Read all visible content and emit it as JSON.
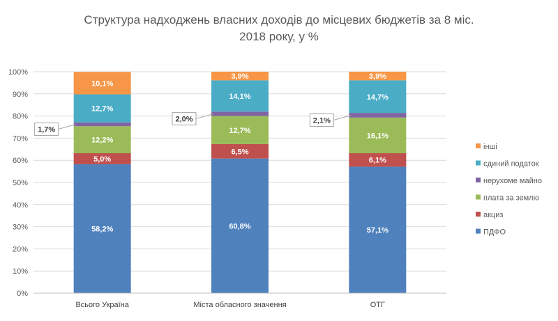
{
  "chart_data": {
    "type": "bar",
    "stacked": true,
    "percent_scale": true,
    "title_line1": "Структура  надходжень власних доходів до місцевих бюджетів за 8 міс.",
    "title_line2": "2018 року, у %",
    "categories": [
      "Всього Україна",
      "Міста обласного значення",
      "ОТГ"
    ],
    "ylim": [
      0,
      100
    ],
    "yticks": [
      0,
      10,
      20,
      30,
      40,
      50,
      60,
      70,
      80,
      90,
      100
    ],
    "ytick_labels": [
      "0%",
      "10%",
      "20%",
      "30%",
      "40%",
      "50%",
      "60%",
      "70%",
      "80%",
      "90%",
      "100%"
    ],
    "grid": true,
    "legend_position": "right",
    "series": [
      {
        "name": "ПДФО",
        "color": "#4F81BD",
        "values": [
          58.2,
          60.8,
          57.1
        ],
        "labels": [
          "58,2%",
          "60,8%",
          "57,1%"
        ]
      },
      {
        "name": "акциз",
        "color": "#C0504D",
        "values": [
          5.0,
          6.5,
          6.1
        ],
        "labels": [
          "5,0%",
          "6,5%",
          "6,1%"
        ]
      },
      {
        "name": "плата за землю",
        "color": "#9BBB59",
        "values": [
          12.2,
          12.7,
          16.1
        ],
        "labels": [
          "12,2%",
          "12,7%",
          "16,1%"
        ]
      },
      {
        "name": "нерухоме майно",
        "color": "#8064A2",
        "values": [
          1.7,
          2.0,
          2.1
        ],
        "labels": [
          "1,7%",
          "2,0%",
          "2,1%"
        ],
        "callout": true
      },
      {
        "name": "єдиний податок",
        "color": "#4BACC6",
        "values": [
          12.7,
          14.1,
          14.7
        ],
        "labels": [
          "12,7%",
          "14,1%",
          "14,7%"
        ]
      },
      {
        "name": "інші",
        "color": "#F79646",
        "values": [
          10.1,
          3.9,
          3.9
        ],
        "labels": [
          "10,1%",
          "3,9%",
          "3,9%"
        ]
      }
    ]
  }
}
